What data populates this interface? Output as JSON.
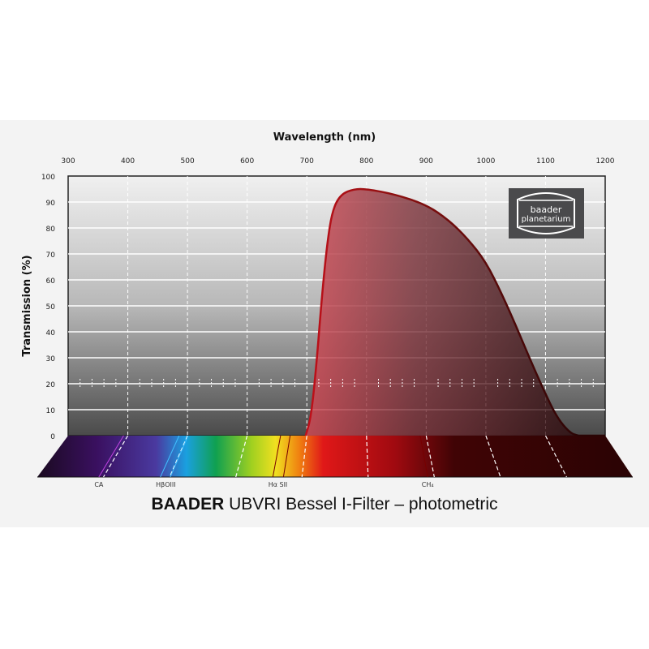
{
  "chart_data": {
    "type": "area",
    "title_brand": "BAADER",
    "title_rest": "UBVRI Bessel I-Filter – photometric",
    "xlabel": "Wavelength (nm)",
    "ylabel": "Transmission (%)",
    "xlim": [
      300,
      1200
    ],
    "ylim": [
      0,
      100
    ],
    "x_axis_position": "top",
    "grid": true,
    "xticks": [
      300,
      400,
      500,
      600,
      700,
      800,
      900,
      1000,
      1100,
      1200
    ],
    "yticks": [
      0,
      10,
      20,
      30,
      40,
      50,
      60,
      70,
      80,
      90,
      100
    ],
    "series": [
      {
        "x": [
          698,
          707,
          716,
          725,
          734,
          743,
          757,
          779,
          800,
          847,
          900,
          938,
          969,
          1000,
          1028,
          1051,
          1073,
          1096,
          1119,
          1141,
          1155
        ],
        "y": [
          0,
          7,
          27,
          53,
          74,
          87,
          93,
          95,
          95,
          93,
          89,
          83,
          76,
          67,
          54,
          42,
          30,
          18,
          7,
          1,
          0
        ],
        "color": "#a80f14"
      }
    ],
    "emission_lines": [
      {
        "label": "CA",
        "nm": 393
      },
      {
        "label": "Hβ",
        "nm": 486
      },
      {
        "label": "OIII",
        "nm": 501
      },
      {
        "label": "Hα",
        "nm": 656
      },
      {
        "label": "SII",
        "nm": 672
      },
      {
        "label": "CH₄",
        "nm": 890
      }
    ],
    "logo": "baader planetarium"
  }
}
